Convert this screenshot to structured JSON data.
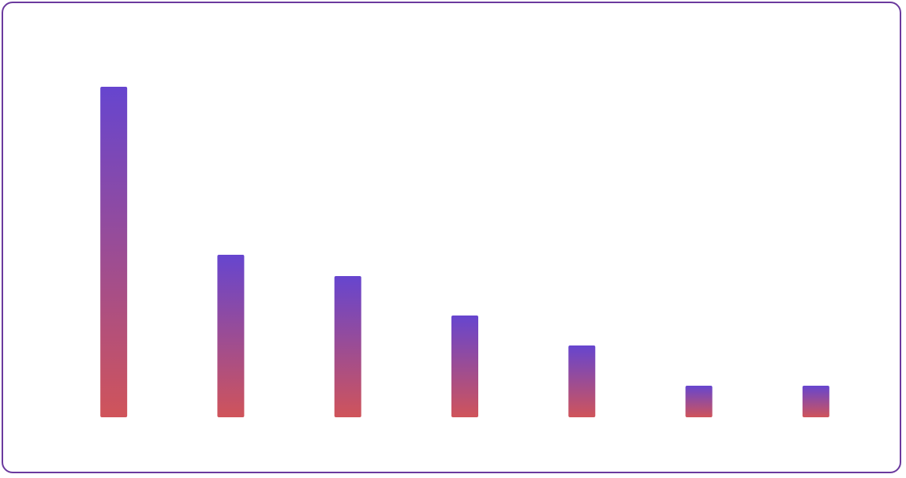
{
  "chart_data": {
    "type": "bar",
    "values": [
      419,
      206,
      179,
      129,
      91,
      40,
      40
    ],
    "color_top": "#6645cf",
    "color_bottom": "#d0545a",
    "ylim": [
      0,
      419
    ]
  }
}
